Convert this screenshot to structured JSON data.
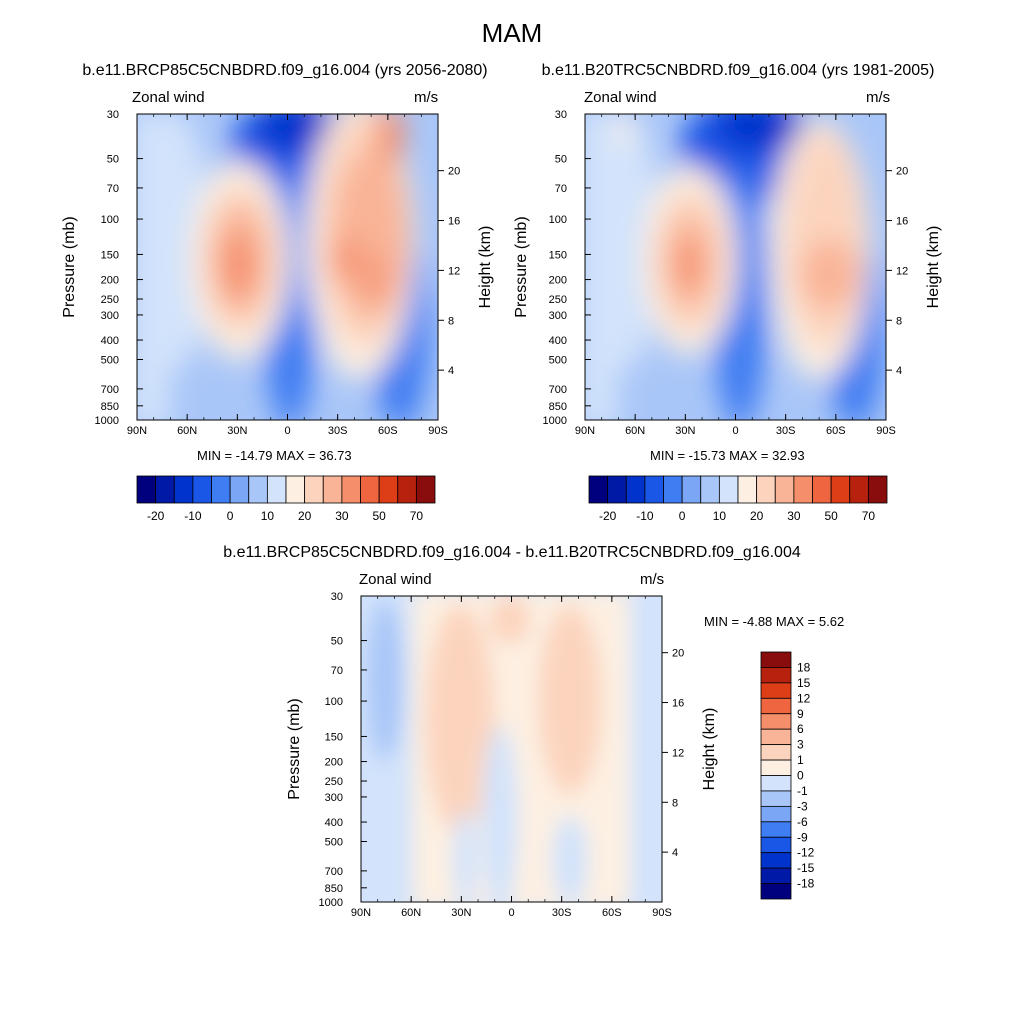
{
  "figure": {
    "title": "MAM"
  },
  "palette": {
    "standard": [
      "#00007f",
      "#0019a6",
      "#0033cc",
      "#1a57e6",
      "#3f7df2",
      "#7aa6f5",
      "#a9c6f8",
      "#d2e3fb",
      "#fdf0e2",
      "#fcd4be",
      "#f9b396",
      "#f58e6a",
      "#ee6540",
      "#dd3d17",
      "#b7220e",
      "#8a0d0d"
    ],
    "diff": [
      "#00007f",
      "#0019a6",
      "#0033cc",
      "#1a57e6",
      "#3f7df2",
      "#7aa6f5",
      "#a9c6f8",
      "#d2e3fb",
      "#fdf0e2",
      "#fcd4be",
      "#f9b396",
      "#f58e6a",
      "#ee6540",
      "#dd3d17",
      "#b7220e",
      "#8a0d0d"
    ]
  },
  "chart_data": [
    {
      "type": "heatmap",
      "title": "b.e11.BRCP85C5CNBDRD.f09_g16.004 (yrs 2056-2080)",
      "subtitle_left": "Zonal wind",
      "subtitle_right": "m/s",
      "ylabel": "Pressure (mb)",
      "ylabel_right": "Height (km)",
      "x_ticks": [
        "90N",
        "60N",
        "30N",
        "0",
        "30S",
        "60S",
        "90S"
      ],
      "y_ticks": [
        "30",
        "50",
        "70",
        "100",
        "150",
        "200",
        "250",
        "300",
        "400",
        "500",
        "700",
        "850",
        "1000"
      ],
      "y_ticks_right": [
        "20",
        "16",
        "12",
        "8",
        "4"
      ],
      "min_max": "MIN = -14.79  MAX = 36.73",
      "colorbar_labels": [
        "-20",
        "-10",
        "0",
        "10",
        "20",
        "30",
        "50",
        "70"
      ],
      "colorbar_orientation": "horizontal"
    },
    {
      "type": "heatmap",
      "title": "b.e11.B20TRC5CNBDRD.f09_g16.004 (yrs 1981-2005)",
      "subtitle_left": "Zonal wind",
      "subtitle_right": "m/s",
      "ylabel": "Pressure (mb)",
      "ylabel_right": "Height (km)",
      "x_ticks": [
        "90N",
        "60N",
        "30N",
        "0",
        "30S",
        "60S",
        "90S"
      ],
      "y_ticks": [
        "30",
        "50",
        "70",
        "100",
        "150",
        "200",
        "250",
        "300",
        "400",
        "500",
        "700",
        "850",
        "1000"
      ],
      "y_ticks_right": [
        "20",
        "16",
        "12",
        "8",
        "4"
      ],
      "min_max": "MIN = -15.73  MAX = 32.93",
      "colorbar_labels": [
        "-20",
        "-10",
        "0",
        "10",
        "20",
        "30",
        "50",
        "70"
      ],
      "colorbar_orientation": "horizontal"
    },
    {
      "type": "heatmap",
      "title": "b.e11.BRCP85C5CNBDRD.f09_g16.004 - b.e11.B20TRC5CNBDRD.f09_g16.004",
      "subtitle_left": "Zonal wind",
      "subtitle_right": "m/s",
      "ylabel": "Pressure (mb)",
      "ylabel_right": "Height (km)",
      "x_ticks": [
        "90N",
        "60N",
        "30N",
        "0",
        "30S",
        "60S",
        "90S"
      ],
      "y_ticks": [
        "30",
        "50",
        "70",
        "100",
        "150",
        "200",
        "250",
        "300",
        "400",
        "500",
        "700",
        "850",
        "1000"
      ],
      "y_ticks_right": [
        "20",
        "16",
        "12",
        "8",
        "4"
      ],
      "min_max": "MIN =  -4.88  MAX =   5.62",
      "colorbar_labels": [
        "18",
        "15",
        "12",
        "9",
        "6",
        "3",
        "1",
        "0",
        "-1",
        "-3",
        "-6",
        "-9",
        "-12",
        "-15",
        "-18"
      ],
      "colorbar_orientation": "vertical"
    }
  ]
}
